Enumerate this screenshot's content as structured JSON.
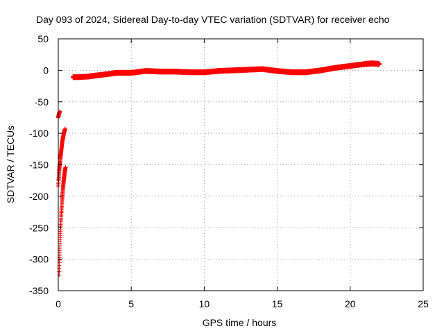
{
  "chart_data": {
    "type": "scatter",
    "title": "Day 093 of 2024, Sidereal Day-to-day VTEC variation (SDTVAR) for receiver echo",
    "xlabel": "GPS time / hours",
    "ylabel": "SDTVAR / TECUs",
    "xlim": [
      0,
      25
    ],
    "ylim": [
      -350,
      50
    ],
    "xticks": [
      0,
      5,
      10,
      15,
      20,
      25
    ],
    "yticks": [
      50,
      0,
      -50,
      -100,
      -150,
      -200,
      -250,
      -300,
      -350
    ],
    "grid": true,
    "marker": "+",
    "color": "#ff0000",
    "series": [
      {
        "segments": [
          {
            "x": [
              0.0,
              0.02,
              0.04,
              0.06,
              0.08,
              0.1,
              0.12
            ],
            "y": [
              -75,
              -72,
              -70,
              -68,
              -67,
              -66,
              -65
            ]
          },
          {
            "x": [
              0.0,
              0.02,
              0.04,
              0.06,
              0.08,
              0.1,
              0.12,
              0.14,
              0.16,
              0.18,
              0.2,
              0.22,
              0.24,
              0.26,
              0.28,
              0.3,
              0.32,
              0.34,
              0.36,
              0.38,
              0.4,
              0.42,
              0.44,
              0.46,
              0.48
            ],
            "y": [
              -185,
              -175,
              -168,
              -160,
              -155,
              -150,
              -146,
              -140,
              -136,
              -132,
              -128,
              -124,
              -120,
              -116,
              -112,
              -110,
              -107,
              -105,
              -103,
              -100,
              -98,
              -96,
              -95,
              -94,
              -93
            ]
          },
          {
            "x": [
              0.06,
              0.08,
              0.1,
              0.12,
              0.14,
              0.16,
              0.18,
              0.2,
              0.22,
              0.24,
              0.26,
              0.28,
              0.3,
              0.32,
              0.34,
              0.36,
              0.38,
              0.4,
              0.42,
              0.44,
              0.46,
              0.48,
              0.5
            ],
            "y": [
              -325,
              -305,
              -290,
              -275,
              -262,
              -250,
              -240,
              -230,
              -222,
              -214,
              -206,
              -200,
              -194,
              -188,
              -183,
              -178,
              -174,
              -170,
              -166,
              -162,
              -159,
              -156,
              -154
            ]
          }
        ],
        "band": {
          "x": [
            1.0,
            2.0,
            3.0,
            4.0,
            5.0,
            6.0,
            7.0,
            8.0,
            9.0,
            10.0,
            11.0,
            12.0,
            13.0,
            14.0,
            15.0,
            16.0,
            17.0,
            18.0,
            19.0,
            20.0,
            21.0,
            21.5,
            22.0
          ],
          "y": [
            -11,
            -10,
            -7,
            -4,
            -4,
            -1,
            -2,
            -2,
            -3,
            -3,
            -1,
            0,
            1,
            2,
            -1,
            -3,
            -3,
            0,
            4,
            7,
            10,
            11,
            10
          ]
        }
      }
    ]
  }
}
